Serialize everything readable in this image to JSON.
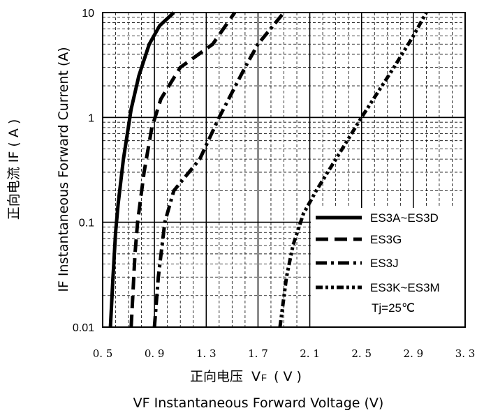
{
  "chart_data": {
    "type": "line",
    "xlabel_cn": "正向电压",
    "xlabel_v": "V",
    "xlabel_v_sub": "F",
    "xlabel_unit": "( V )",
    "xlabel_en": "VF  Instantaneous Forward Voltage (V)",
    "ylabel_cn": "正向电流  IF ( A )",
    "ylabel_en": "IF Instantaneous Forward Current (A)",
    "x_ticks": [
      "0. 5",
      "0. 9",
      "1. 3",
      "1. 7",
      "2. 1",
      "2. 5",
      "2. 9",
      "3. 3"
    ],
    "y_ticks": [
      "0.01",
      "0.1",
      "1",
      "10"
    ],
    "xlim": [
      0.5,
      3.3
    ],
    "ylim": [
      0.01,
      10
    ],
    "y_scale": "log",
    "grid": true,
    "legend_position": "bottom-right",
    "annotation": "Tj=25℃",
    "series": [
      {
        "name": "ES3A~ES3D",
        "dash": "solid",
        "points": [
          [
            0.56,
            0.01
          ],
          [
            0.58,
            0.03
          ],
          [
            0.6,
            0.08
          ],
          [
            0.62,
            0.15
          ],
          [
            0.66,
            0.4
          ],
          [
            0.72,
            1.2
          ],
          [
            0.78,
            2.5
          ],
          [
            0.86,
            5
          ],
          [
            0.94,
            7.5
          ],
          [
            1.05,
            10
          ]
        ]
      },
      {
        "name": "ES3G",
        "dash": "dash",
        "points": [
          [
            0.72,
            0.01
          ],
          [
            0.75,
            0.05
          ],
          [
            0.77,
            0.1
          ],
          [
            0.82,
            0.3
          ],
          [
            0.88,
            0.8
          ],
          [
            0.95,
            1.5
          ],
          [
            1.1,
            3
          ],
          [
            1.35,
            5
          ],
          [
            1.52,
            10
          ]
        ]
      },
      {
        "name": "ES3J",
        "dash": "dashdot",
        "points": [
          [
            0.9,
            0.01
          ],
          [
            0.93,
            0.03
          ],
          [
            0.98,
            0.1
          ],
          [
            1.05,
            0.2
          ],
          [
            1.25,
            0.4
          ],
          [
            1.4,
            1
          ],
          [
            1.6,
            3
          ],
          [
            1.7,
            5
          ],
          [
            1.9,
            10
          ]
        ]
      },
      {
        "name": "ES3K~ES3M",
        "dash": "dashdotdot",
        "points": [
          [
            1.87,
            0.01
          ],
          [
            1.92,
            0.03
          ],
          [
            1.97,
            0.06
          ],
          [
            2.05,
            0.12
          ],
          [
            2.15,
            0.2
          ],
          [
            2.35,
            0.5
          ],
          [
            2.5,
            1
          ],
          [
            2.75,
            3
          ],
          [
            2.9,
            6
          ],
          [
            3.0,
            10
          ]
        ]
      }
    ]
  }
}
